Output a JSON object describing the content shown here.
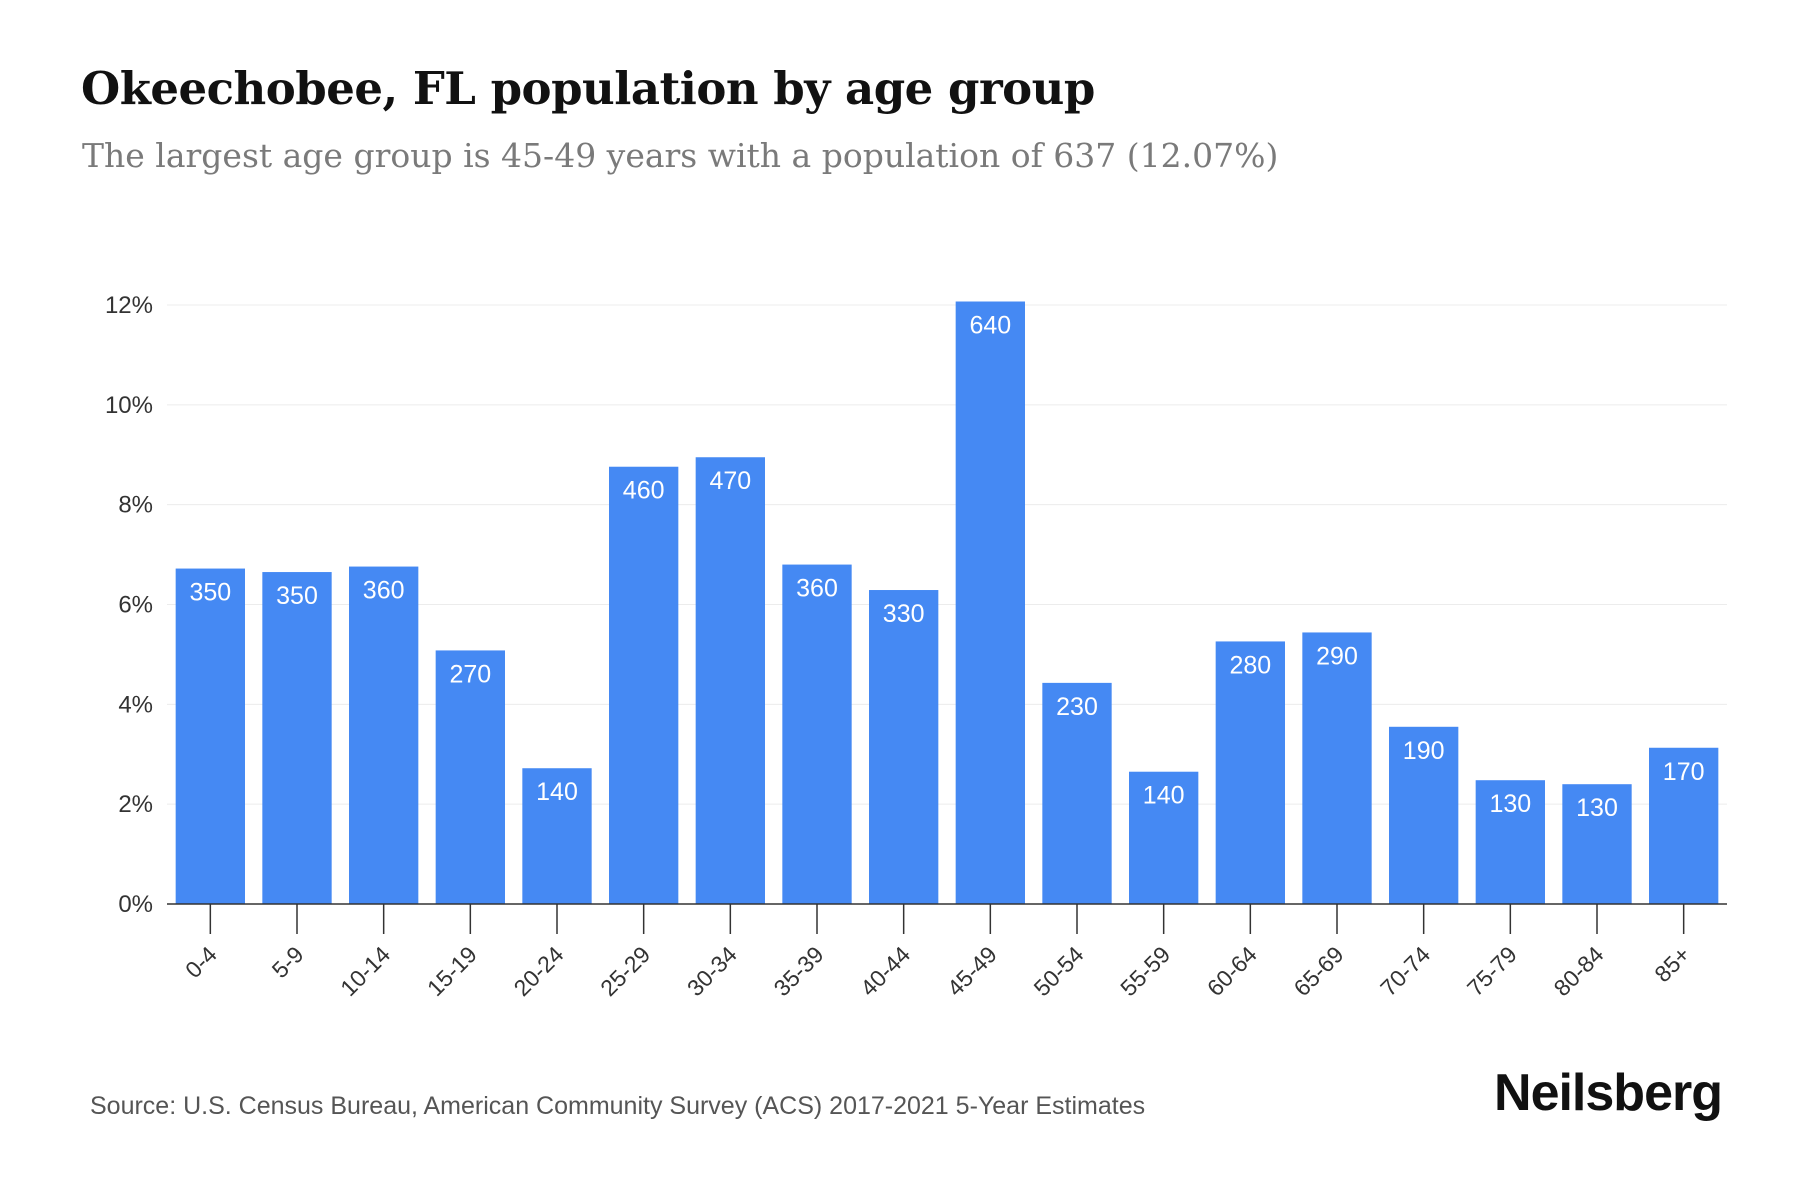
{
  "chart_data": {
    "type": "bar",
    "title": "Okeechobee, FL population by age group",
    "subtitle": "The largest age group is 45-49 years with a population of 637 (12.07%)",
    "categories": [
      "0-4",
      "5-9",
      "10-14",
      "15-19",
      "20-24",
      "25-29",
      "30-34",
      "35-39",
      "40-44",
      "45-49",
      "50-54",
      "55-59",
      "60-64",
      "65-69",
      "70-74",
      "75-79",
      "80-84",
      "85+"
    ],
    "values": [
      6.72,
      6.65,
      6.76,
      5.08,
      2.72,
      8.76,
      8.95,
      6.8,
      6.29,
      12.07,
      4.43,
      2.65,
      5.26,
      5.44,
      3.55,
      2.48,
      2.4,
      3.13
    ],
    "data_labels": [
      "350",
      "350",
      "360",
      "270",
      "140",
      "460",
      "470",
      "360",
      "330",
      "640",
      "230",
      "140",
      "280",
      "290",
      "190",
      "130",
      "130",
      "170"
    ],
    "yticks": [
      "0%",
      "2%",
      "4%",
      "6%",
      "8%",
      "10%",
      "12%"
    ],
    "ylim": [
      0,
      12
    ],
    "xlabel": "",
    "ylabel": "",
    "grid": true,
    "colors": {
      "bar": "#4589f3",
      "label": "#ffffff",
      "grid": "#ececec",
      "axis": "#333333"
    }
  },
  "footer": {
    "source": "Source: U.S. Census Bureau, American Community Survey (ACS) 2017-2021 5-Year Estimates",
    "brand": "Neilsberg"
  }
}
